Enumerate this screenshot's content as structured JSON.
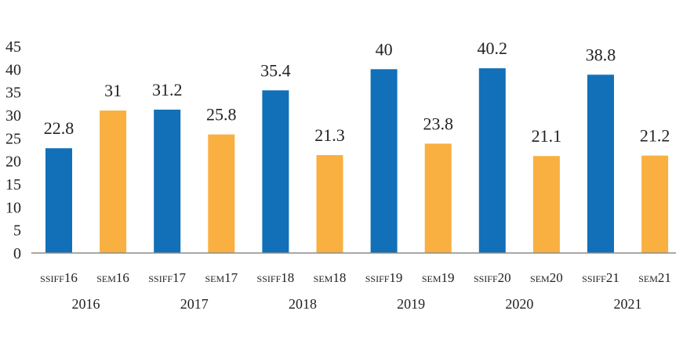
{
  "chart_data": {
    "type": "bar",
    "title": "",
    "xlabel": "",
    "ylabel": "",
    "ylim": [
      0,
      45
    ],
    "yticks": [
      0,
      5,
      10,
      15,
      20,
      25,
      30,
      35,
      40,
      45
    ],
    "grid": false,
    "legend": "none",
    "categories": [
      "SSIFF16",
      "SEM16",
      "SSIFF17",
      "SEM17",
      "SSIFF18",
      "SEM18",
      "SSIFF19",
      "SEM19",
      "SSIFF20",
      "SEM20",
      "SSIFF21",
      "SEM21"
    ],
    "values": [
      22.8,
      31,
      31.2,
      25.8,
      35.4,
      21.3,
      40,
      23.8,
      40.2,
      21.1,
      38.8,
      21.2
    ],
    "value_labels": [
      "22.8",
      "31",
      "31.2",
      "25.8",
      "35.4",
      "21.3",
      "40",
      "23.8",
      "40.2",
      "21.1",
      "38.8",
      "21.2"
    ],
    "groups": [
      "2016",
      "2017",
      "2018",
      "2019",
      "2020",
      "2021"
    ],
    "colors": {
      "SSIFF": "#1170b8",
      "SEM": "#f9b040",
      "axis": "#8c8c8c",
      "text": "#222222"
    }
  }
}
